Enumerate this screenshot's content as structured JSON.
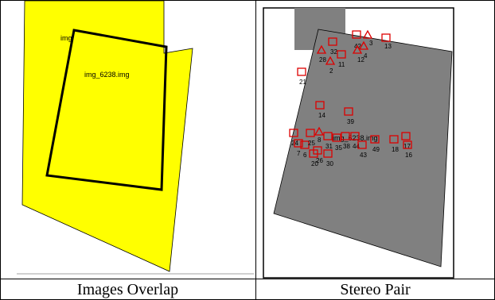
{
  "left": {
    "image_label": "img_6238.img",
    "image_label_partial": "img",
    "colors": {
      "overlap_fill": "#ffff00",
      "outline": "#000000"
    }
  },
  "right": {
    "image_label": "img_6238.img",
    "colors": {
      "image_fill": "#808080",
      "marker": "#dd0000"
    },
    "points": [
      {
        "label": "42",
        "shape": "square"
      },
      {
        "label": "3",
        "shape": "triangle"
      },
      {
        "label": "13",
        "shape": "square"
      },
      {
        "label": "32",
        "shape": "square"
      },
      {
        "label": "12",
        "shape": "triangle"
      },
      {
        "label": "4",
        "shape": "triangle"
      },
      {
        "label": "28",
        "shape": "triangle"
      },
      {
        "label": "11",
        "shape": "square"
      },
      {
        "label": "2",
        "shape": "triangle"
      },
      {
        "label": "21",
        "shape": "square"
      },
      {
        "label": "14",
        "shape": "square"
      },
      {
        "label": "39",
        "shape": "square"
      },
      {
        "label": "24",
        "shape": "square"
      },
      {
        "label": "8",
        "shape": "triangle"
      },
      {
        "label": "7",
        "shape": "square"
      },
      {
        "label": "6",
        "shape": "square"
      },
      {
        "label": "25",
        "shape": "square"
      },
      {
        "label": "31",
        "shape": "square"
      },
      {
        "label": "35",
        "shape": "square"
      },
      {
        "label": "38",
        "shape": "square"
      },
      {
        "label": "44",
        "shape": "square"
      },
      {
        "label": "43",
        "shape": "square"
      },
      {
        "label": "49",
        "shape": "square"
      },
      {
        "label": "18",
        "shape": "square"
      },
      {
        "label": "17",
        "shape": "square"
      },
      {
        "label": "16",
        "shape": "square"
      },
      {
        "label": "20",
        "shape": "square"
      },
      {
        "label": "26",
        "shape": "square"
      },
      {
        "label": "30",
        "shape": "square"
      }
    ]
  },
  "captions": {
    "left": "Images Overlap",
    "right": "Stereo Pair"
  }
}
